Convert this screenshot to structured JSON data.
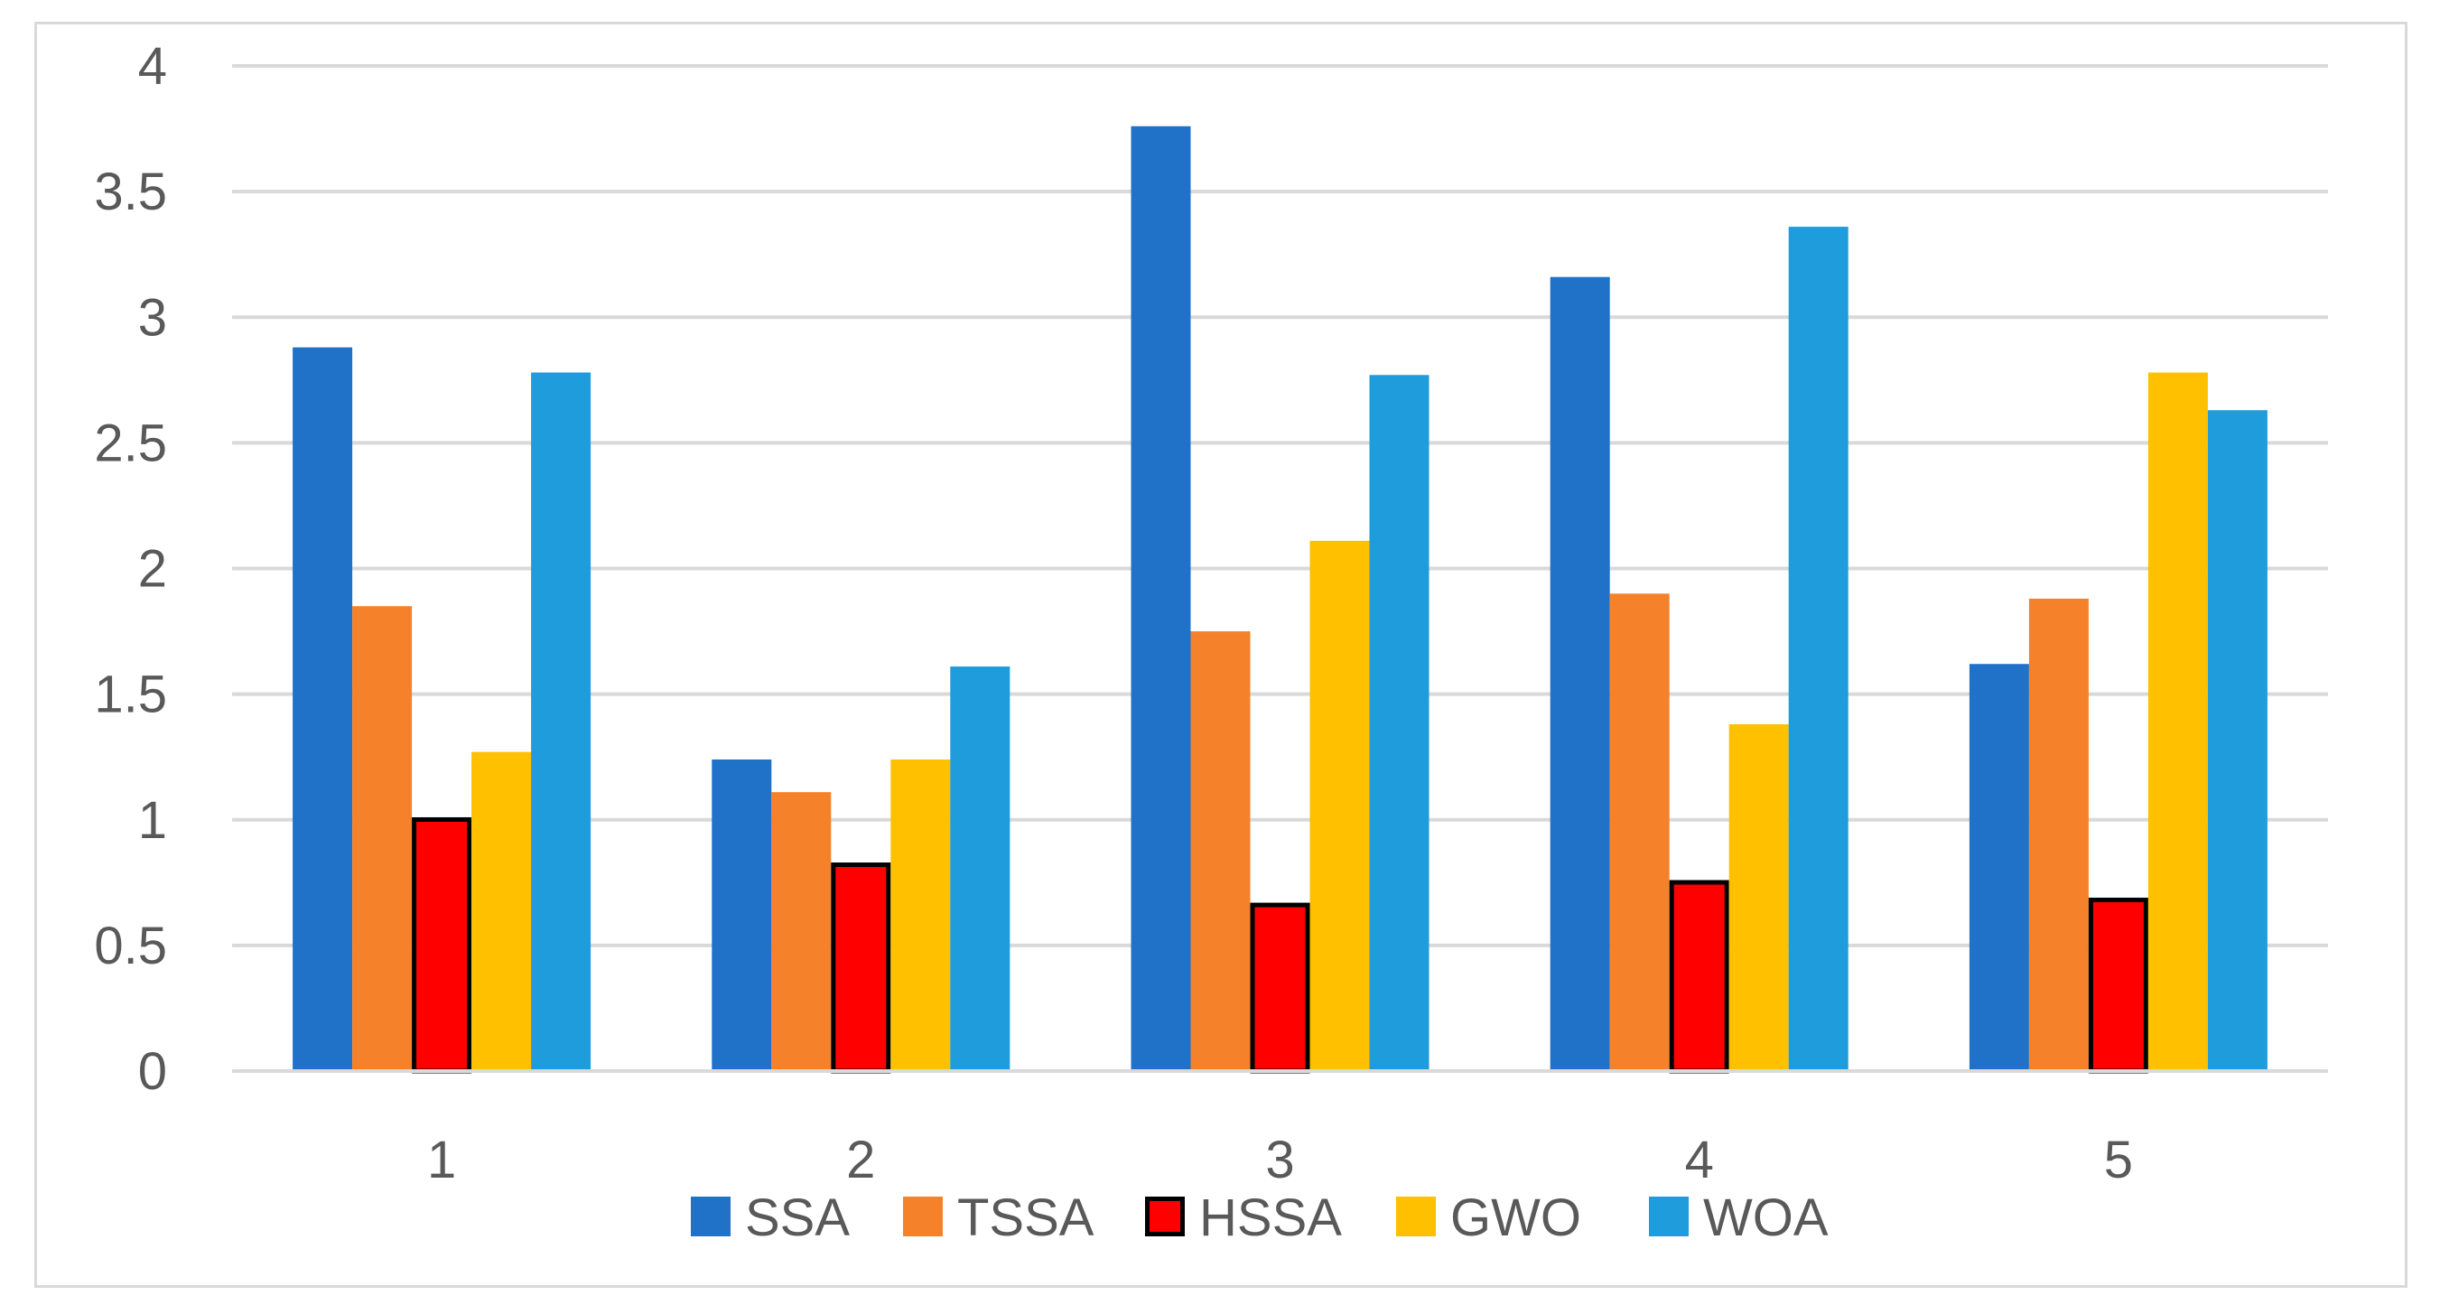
{
  "chart_data": {
    "type": "bar",
    "title": "",
    "xlabel": "",
    "ylabel": "",
    "categories": [
      "1",
      "2",
      "3",
      "4",
      "5"
    ],
    "ylim": [
      0,
      4
    ],
    "y_ticks": [
      0,
      0.5,
      1,
      1.5,
      2,
      2.5,
      3,
      3.5,
      4
    ],
    "y_tick_labels": [
      "0",
      "0.5",
      "1",
      "1.5",
      "2",
      "2.5",
      "3",
      "3.5",
      "4"
    ],
    "grid": true,
    "legend_position": "bottom",
    "series": [
      {
        "name": "SSA",
        "color": "#1f72c8",
        "outlined": false,
        "values": [
          2.88,
          1.24,
          3.76,
          3.16,
          1.62
        ]
      },
      {
        "name": "TSSA",
        "color": "#f5822a",
        "outlined": false,
        "values": [
          1.85,
          1.11,
          1.75,
          1.9,
          1.88
        ]
      },
      {
        "name": "HSSA",
        "color": "#ff0000",
        "outlined": true,
        "values": [
          1.01,
          0.83,
          0.67,
          0.76,
          0.69
        ]
      },
      {
        "name": "GWO",
        "color": "#ffc000",
        "outlined": false,
        "values": [
          1.27,
          1.24,
          2.11,
          1.38,
          2.78
        ]
      },
      {
        "name": "WOA",
        "color": "#1e9cdb",
        "outlined": false,
        "values": [
          2.78,
          1.61,
          2.77,
          3.36,
          2.63
        ]
      }
    ]
  }
}
